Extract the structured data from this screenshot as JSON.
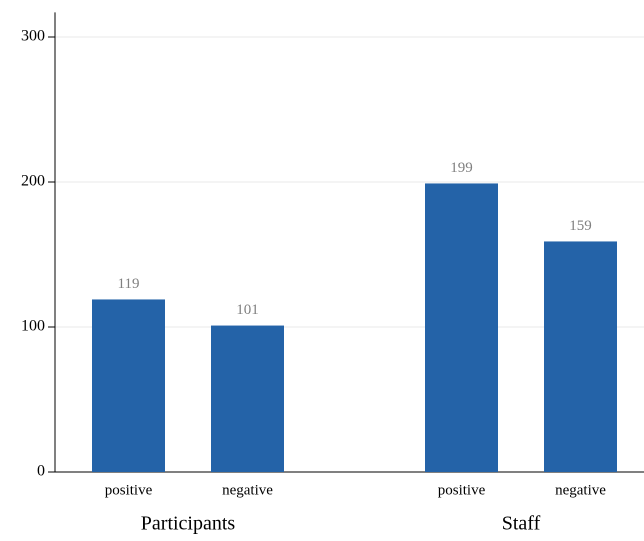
{
  "chart_data": {
    "type": "bar",
    "groups": [
      {
        "name": "Participants",
        "categories": [
          "positive",
          "negative"
        ],
        "values": [
          119,
          101
        ]
      },
      {
        "name": "Staff",
        "categories": [
          "positive",
          "negative"
        ],
        "values": [
          199,
          159
        ]
      }
    ],
    "color": "#2463a8",
    "ylim": [
      0,
      317
    ],
    "yticks": [
      0,
      100,
      200,
      300
    ],
    "grid": true
  }
}
